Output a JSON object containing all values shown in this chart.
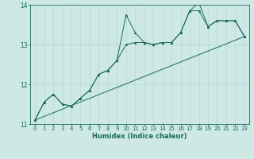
{
  "xlabel": "Humidex (Indice chaleur)",
  "bg_color": "#cde8e5",
  "line_color": "#1a6b5a",
  "grid_color": "#b8d8d4",
  "xlim": [
    -0.5,
    23.5
  ],
  "ylim": [
    11,
    14
  ],
  "yticks": [
    11,
    12,
    13,
    14
  ],
  "xticks": [
    0,
    1,
    2,
    3,
    4,
    5,
    6,
    7,
    8,
    9,
    10,
    11,
    12,
    13,
    14,
    15,
    16,
    17,
    18,
    19,
    20,
    21,
    22,
    23
  ],
  "series1_y": [
    11.1,
    11.55,
    11.75,
    11.5,
    11.45,
    11.65,
    11.85,
    12.25,
    12.35,
    12.6,
    13.75,
    13.3,
    13.05,
    13.0,
    13.05,
    13.05,
    13.3,
    13.85,
    14.05,
    13.45,
    13.6,
    13.6,
    13.6,
    13.2
  ],
  "series2_y": [
    11.1,
    11.55,
    11.75,
    11.5,
    11.45,
    11.65,
    11.85,
    12.25,
    12.35,
    12.6,
    13.0,
    13.05,
    13.05,
    13.0,
    13.05,
    13.05,
    13.3,
    13.85,
    13.85,
    13.45,
    13.6,
    13.6,
    13.6,
    13.2
  ],
  "trend_y_start": 11.1,
  "trend_y_end": 13.2,
  "xlabel_fontsize": 6,
  "tick_fontsize": 5
}
